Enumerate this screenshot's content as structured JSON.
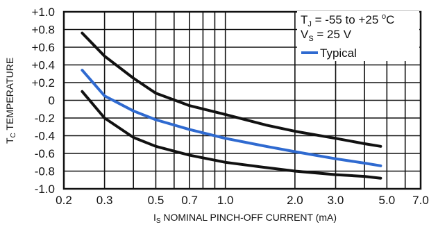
{
  "chart_data": {
    "type": "line",
    "x_scale": "log",
    "xlim": [
      0.2,
      7.0
    ],
    "ylim": [
      -1.0,
      1.0
    ],
    "grid": true,
    "xlabel": "I",
    "xlabel_sub": "S",
    "xlabel_rest": " NOMINAL PINCH-OFF CURRENT (mA)",
    "ylabel": "T",
    "ylabel_sub": "C",
    "ylabel_rest": " TEMPERATURE",
    "x_ticks": [
      {
        "value": 0.2,
        "label": "0.2"
      },
      {
        "value": 0.3,
        "label": "0.3"
      },
      {
        "value": 0.5,
        "label": "0.5"
      },
      {
        "value": 0.7,
        "label": "0.7"
      },
      {
        "value": 1.0,
        "label": "1.0"
      },
      {
        "value": 2.0,
        "label": "2.0"
      },
      {
        "value": 3.0,
        "label": "3.0"
      },
      {
        "value": 5.0,
        "label": "5.0"
      },
      {
        "value": 7.0,
        "label": "7.0"
      }
    ],
    "x_minor_grid": [
      0.4,
      0.6,
      0.8,
      0.9,
      4.0,
      6.0
    ],
    "y_ticks": [
      {
        "value": 1.0,
        "label": "+1.0"
      },
      {
        "value": 0.8,
        "label": "+0.8"
      },
      {
        "value": 0.6,
        "label": "+0.6"
      },
      {
        "value": 0.4,
        "label": "+0.4"
      },
      {
        "value": 0.2,
        "label": "+0.2"
      },
      {
        "value": 0.0,
        "label": "0"
      },
      {
        "value": -0.2,
        "label": "-0.2"
      },
      {
        "value": -0.4,
        "label": "-0.4"
      },
      {
        "value": -0.6,
        "label": "-0.6"
      },
      {
        "value": -0.8,
        "label": "-0.8"
      },
      {
        "value": -1.0,
        "label": "-1.0"
      }
    ],
    "annotations": [
      {
        "main": "T",
        "sub": "J",
        "rest": " = -55 to +25 ",
        "sup": "o",
        "tail": "C"
      },
      {
        "main": "V",
        "sub": "S",
        "rest": " = 25 V",
        "sup": "",
        "tail": ""
      }
    ],
    "legend": {
      "placement": "top-right"
    },
    "series": [
      {
        "color": "#111111",
        "x": [
          0.24,
          0.3,
          0.4,
          0.5,
          0.7,
          1.0,
          1.5,
          2.0,
          3.0,
          4.0,
          4.7
        ],
        "y": [
          0.76,
          0.5,
          0.25,
          0.08,
          -0.06,
          -0.16,
          -0.28,
          -0.35,
          -0.43,
          -0.49,
          -0.52
        ]
      },
      {
        "name": "Typical",
        "color": "#2f6ad0",
        "x": [
          0.24,
          0.3,
          0.4,
          0.5,
          0.7,
          1.0,
          1.5,
          2.0,
          3.0,
          4.0,
          4.7
        ],
        "y": [
          0.34,
          0.05,
          -0.12,
          -0.22,
          -0.33,
          -0.43,
          -0.52,
          -0.58,
          -0.66,
          -0.71,
          -0.74
        ]
      },
      {
        "color": "#111111",
        "x": [
          0.24,
          0.3,
          0.4,
          0.5,
          0.7,
          1.0,
          1.5,
          2.0,
          3.0,
          4.0,
          4.7
        ],
        "y": [
          0.1,
          -0.2,
          -0.42,
          -0.52,
          -0.62,
          -0.7,
          -0.76,
          -0.8,
          -0.84,
          -0.86,
          -0.88
        ]
      }
    ]
  }
}
